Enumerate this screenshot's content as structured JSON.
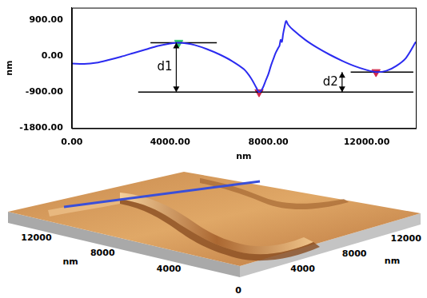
{
  "chart_data": {
    "type": "line",
    "x_label": "nm",
    "y_label": "nm",
    "xlim": [
      0,
      14000
    ],
    "xticks": [
      {
        "value": 0,
        "label": "0.00"
      },
      {
        "value": 4000,
        "label": "4000.00"
      },
      {
        "value": 8000,
        "label": "8000.00"
      },
      {
        "value": 12000,
        "label": "12000.00"
      }
    ],
    "ylim": [
      -1800,
      1200
    ],
    "yticks": [
      {
        "value": 900,
        "label": "900.00"
      },
      {
        "value": 0,
        "label": "0.00"
      },
      {
        "value": -900,
        "label": "-900.00"
      },
      {
        "value": -1800,
        "label": "-1800.00"
      }
    ],
    "grid": false,
    "color": "#2b2bf0",
    "x": [
      0,
      500,
      1000,
      1500,
      2000,
      2500,
      3000,
      3500,
      4000,
      4350,
      4700,
      5000,
      5500,
      6000,
      6500,
      7000,
      7300,
      7500,
      7620,
      7750,
      7900,
      8000,
      8100,
      8200,
      8300,
      8400,
      8450,
      8500,
      8550,
      8600,
      8650,
      8720,
      8800,
      9000,
      9500,
      10000,
      10500,
      11000,
      11500,
      12000,
      12380,
      12800,
      13200,
      13600,
      14000
    ],
    "values": [
      -190,
      -200,
      -170,
      -100,
      -20,
      70,
      160,
      250,
      310,
      330,
      310,
      270,
      170,
      40,
      -120,
      -330,
      -560,
      -780,
      -900,
      -820,
      -600,
      -450,
      -250,
      -80,
      80,
      200,
      250,
      400,
      350,
      550,
      700,
      870,
      780,
      650,
      400,
      200,
      30,
      -120,
      -250,
      -350,
      -400,
      -370,
      -250,
      -50,
      350
    ],
    "markers": [
      {
        "x": 4350,
        "y": 330,
        "color": "#2ecc71",
        "marker": "triangle-down"
      },
      {
        "x": 7620,
        "y": -900,
        "color": "#d0284a",
        "marker": "triangle-down"
      },
      {
        "x": 12380,
        "y": -400,
        "color": "#d0284a",
        "marker": "triangle-down"
      }
    ],
    "reference_lines": [
      {
        "y": 330,
        "x": [
          3200,
          5900
        ]
      },
      {
        "y": -900,
        "x": [
          2700,
          13900
        ]
      },
      {
        "y": -400,
        "x": [
          11350,
          13900
        ]
      }
    ],
    "dimensions": [
      {
        "label": "d1",
        "x": 4250,
        "y": [
          -900,
          330
        ]
      },
      {
        "label": "d2",
        "x": 11000,
        "y": [
          -900,
          -400
        ]
      }
    ]
  },
  "surface_image": {
    "front_axis": {
      "ticks": [
        12000,
        8000,
        4000,
        0
      ],
      "label": "nm"
    },
    "side_axis": {
      "ticks": [
        4000,
        8000,
        12000
      ],
      "label": "nm"
    },
    "extent": 14000,
    "scan_line_color": "#3a4fd8"
  }
}
